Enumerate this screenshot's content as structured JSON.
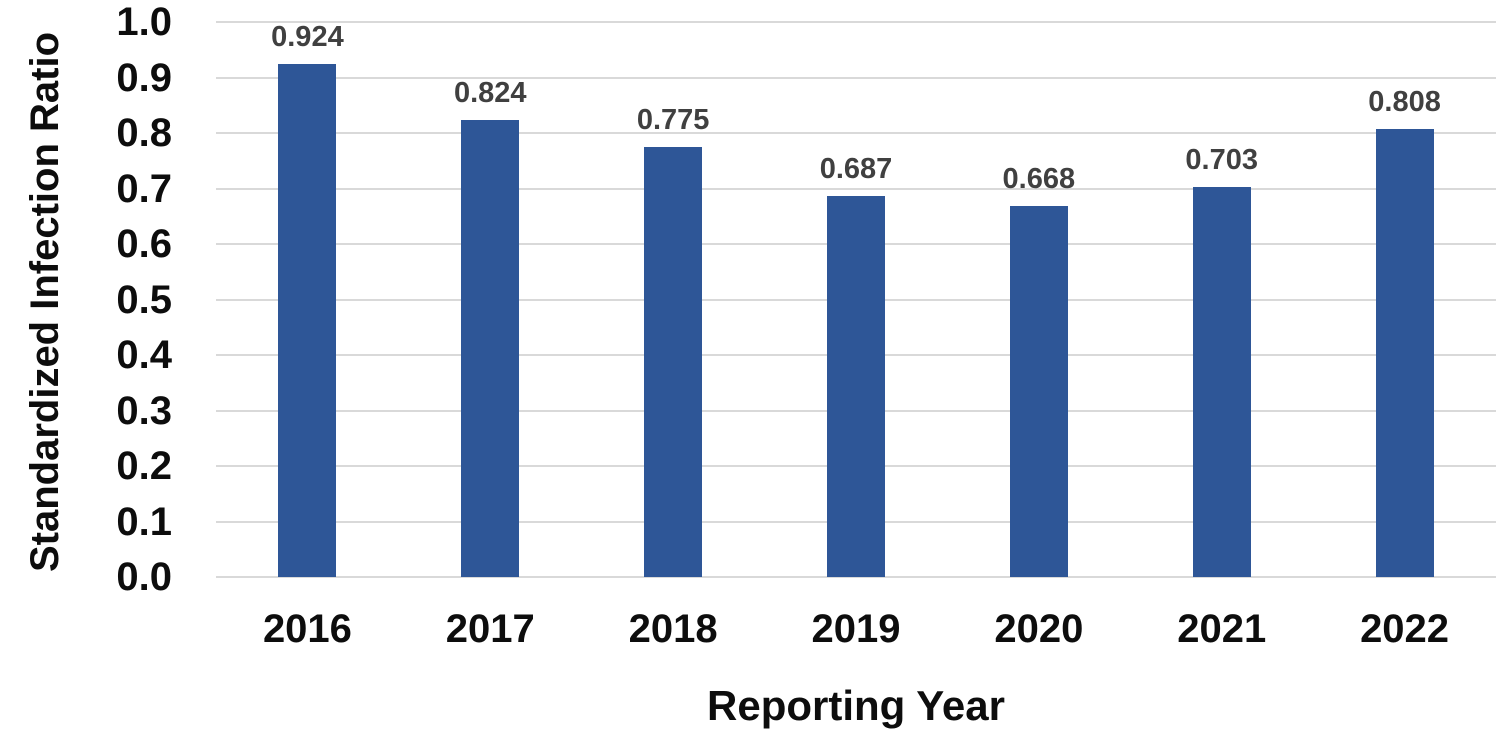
{
  "chart_data": {
    "type": "bar",
    "title": "",
    "categories": [
      "2016",
      "2017",
      "2018",
      "2019",
      "2020",
      "2021",
      "2022"
    ],
    "values": [
      0.924,
      0.824,
      0.775,
      0.687,
      0.668,
      0.703,
      0.808
    ],
    "data_labels": [
      "0.924",
      "0.824",
      "0.775",
      "0.687",
      "0.668",
      "0.703",
      "0.808"
    ],
    "xlabel": "Reporting Year",
    "ylabel": "Standardized Infection Ratio",
    "ylim": [
      0.0,
      1.0
    ],
    "ytick_step": 0.1,
    "yticks": [
      "0.0",
      "0.1",
      "0.2",
      "0.3",
      "0.4",
      "0.5",
      "0.6",
      "0.7",
      "0.8",
      "0.9",
      "1.0"
    ],
    "grid": "horizontal-on",
    "legend": "none",
    "colors": {
      "bar": "#2e5697",
      "gridline": "#d9d9d9",
      "data_label": "#404040",
      "axis_text": "#0d0d0d",
      "background": "#ffffff"
    }
  }
}
